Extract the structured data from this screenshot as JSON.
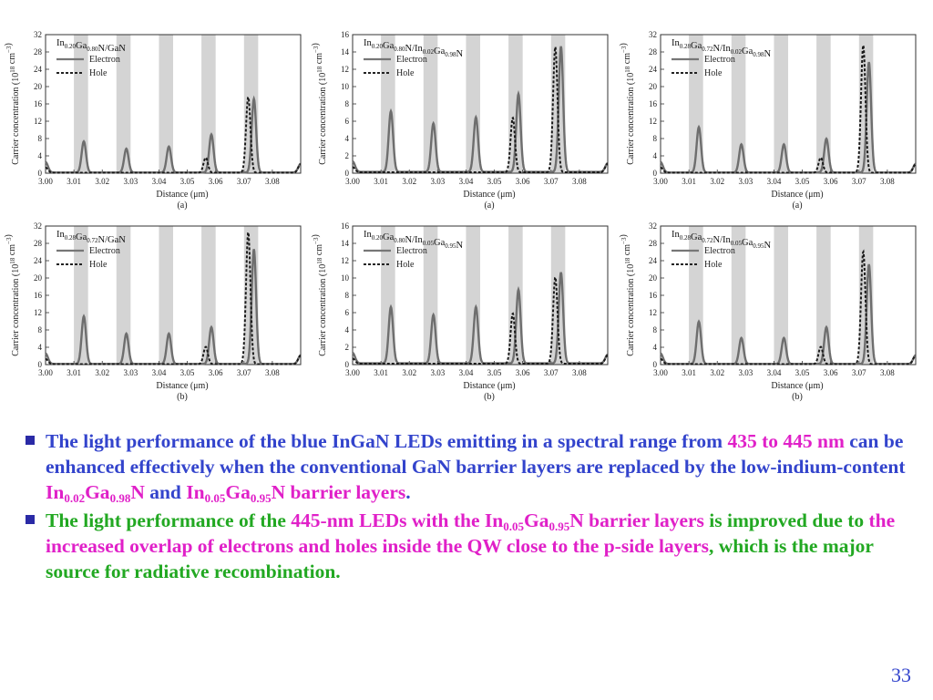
{
  "figure": {
    "y_label": "Carrier concentration (10",
    "y_label_exp": "18",
    "y_label_unit": " cm",
    "y_label_unit_exp": "−3",
    "y_label_close": ")",
    "x_label": "Distance (μm)",
    "legend": {
      "electron": "Electron",
      "hole": "Hole"
    }
  },
  "chart_data": [
    {
      "type": "line",
      "title_parts": [
        {
          "t": "In",
          "s": ""
        },
        {
          "t": "",
          "s": "0.20"
        },
        {
          "t": "Ga",
          "s": ""
        },
        {
          "t": "",
          "s": "0.80"
        },
        {
          "t": "N/GaN",
          "s": ""
        }
      ],
      "panel_label": "(a)",
      "xlim": [
        3.0,
        3.09
      ],
      "x_ticks": [
        "3.00",
        "3.01",
        "3.02",
        "3.03",
        "3.04",
        "3.05",
        "3.06",
        "3.07",
        "3.08"
      ],
      "ylim": [
        0,
        32
      ],
      "y_ticks": [
        "0",
        "4",
        "8",
        "12",
        "16",
        "20",
        "24",
        "28",
        "32"
      ],
      "wells": [
        3.0125,
        3.0275,
        3.0425,
        3.0575,
        3.0725
      ],
      "series": [
        {
          "name": "Electron",
          "peaks": [
            [
              3.0135,
              7.2
            ],
            [
              3.0285,
              5.5
            ],
            [
              3.0435,
              6.0
            ],
            [
              3.0585,
              8.8
            ],
            [
              3.0735,
              17.0
            ]
          ]
        },
        {
          "name": "Hole",
          "peaks": [
            [
              3.0565,
              3.5
            ],
            [
              3.0715,
              17.5
            ]
          ]
        }
      ]
    },
    {
      "type": "line",
      "title_parts": [
        {
          "t": "In",
          "s": ""
        },
        {
          "t": "",
          "s": "0.20"
        },
        {
          "t": "Ga",
          "s": ""
        },
        {
          "t": "",
          "s": "0.80"
        },
        {
          "t": "N/In",
          "s": ""
        },
        {
          "t": "",
          "s": "0.02"
        },
        {
          "t": "Ga",
          "s": ""
        },
        {
          "t": "",
          "s": "0.98"
        },
        {
          "t": "N",
          "s": ""
        }
      ],
      "panel_label": "(a)",
      "xlim": [
        3.0,
        3.09
      ],
      "x_ticks": [
        "3.00",
        "3.01",
        "3.02",
        "3.03",
        "3.04",
        "3.05",
        "3.06",
        "3.07",
        "3.08"
      ],
      "ylim": [
        0,
        16
      ],
      "y_ticks": [
        "0",
        "2",
        "4",
        "6",
        "8",
        "10",
        "12",
        "14",
        "16"
      ],
      "wells": [
        3.0125,
        3.0275,
        3.0425,
        3.0575,
        3.0725
      ],
      "series": [
        {
          "name": "Electron",
          "peaks": [
            [
              3.0135,
              7.0
            ],
            [
              3.0285,
              5.6
            ],
            [
              3.0435,
              6.3
            ],
            [
              3.0585,
              9.0
            ],
            [
              3.0735,
              14.5
            ]
          ]
        },
        {
          "name": "Hole",
          "peaks": [
            [
              3.0565,
              6.3
            ],
            [
              3.0715,
              14.5
            ]
          ]
        }
      ]
    },
    {
      "type": "line",
      "title_parts": [
        {
          "t": "In",
          "s": ""
        },
        {
          "t": "",
          "s": "0.28"
        },
        {
          "t": "Ga",
          "s": ""
        },
        {
          "t": "",
          "s": "0.72"
        },
        {
          "t": "N/In",
          "s": ""
        },
        {
          "t": "",
          "s": "0.02"
        },
        {
          "t": "Ga",
          "s": ""
        },
        {
          "t": "",
          "s": "0.98"
        },
        {
          "t": "N",
          "s": ""
        }
      ],
      "panel_label": "(a)",
      "xlim": [
        3.0,
        3.09
      ],
      "x_ticks": [
        "3.00",
        "3.01",
        "3.02",
        "3.03",
        "3.04",
        "3.05",
        "3.06",
        "3.07",
        "3.08"
      ],
      "ylim": [
        0,
        32
      ],
      "y_ticks": [
        "0",
        "4",
        "8",
        "12",
        "16",
        "20",
        "24",
        "28",
        "32"
      ],
      "wells": [
        3.0125,
        3.0275,
        3.0425,
        3.0575,
        3.0725
      ],
      "series": [
        {
          "name": "Electron",
          "peaks": [
            [
              3.0135,
              10.5
            ],
            [
              3.0285,
              6.5
            ],
            [
              3.0435,
              6.5
            ],
            [
              3.0585,
              7.8
            ],
            [
              3.0735,
              25.5
            ]
          ]
        },
        {
          "name": "Hole",
          "peaks": [
            [
              3.0565,
              3.5
            ],
            [
              3.0715,
              29.5
            ]
          ]
        }
      ]
    },
    {
      "type": "line",
      "title_parts": [
        {
          "t": "In",
          "s": ""
        },
        {
          "t": "",
          "s": "0.28"
        },
        {
          "t": "Ga",
          "s": ""
        },
        {
          "t": "",
          "s": "0.72"
        },
        {
          "t": "N/GaN",
          "s": ""
        }
      ],
      "panel_label": "(b)",
      "xlim": [
        3.0,
        3.09
      ],
      "x_ticks": [
        "3.00",
        "3.01",
        "3.02",
        "3.03",
        "3.04",
        "3.05",
        "3.06",
        "3.07",
        "3.08"
      ],
      "ylim": [
        0,
        32
      ],
      "y_ticks": [
        "0",
        "4",
        "8",
        "12",
        "16",
        "20",
        "24",
        "28",
        "32"
      ],
      "wells": [
        3.0125,
        3.0275,
        3.0425,
        3.0575,
        3.0725
      ],
      "series": [
        {
          "name": "Electron",
          "peaks": [
            [
              3.0135,
              11.0
            ],
            [
              3.0285,
              7.0
            ],
            [
              3.0435,
              7.0
            ],
            [
              3.0585,
              8.5
            ],
            [
              3.0735,
              26.5
            ]
          ]
        },
        {
          "name": "Hole",
          "peaks": [
            [
              3.0565,
              4.0
            ],
            [
              3.0715,
              30.5
            ]
          ]
        }
      ]
    },
    {
      "type": "line",
      "title_parts": [
        {
          "t": "In",
          "s": ""
        },
        {
          "t": "",
          "s": "0.20"
        },
        {
          "t": "Ga",
          "s": ""
        },
        {
          "t": "",
          "s": "0.80"
        },
        {
          "t": "N/In",
          "s": ""
        },
        {
          "t": "",
          "s": "0.05"
        },
        {
          "t": "Ga",
          "s": ""
        },
        {
          "t": "",
          "s": "0.95"
        },
        {
          "t": "N",
          "s": ""
        }
      ],
      "panel_label": "(b)",
      "xlim": [
        3.0,
        3.09
      ],
      "x_ticks": [
        "3.00",
        "3.01",
        "3.02",
        "3.03",
        "3.04",
        "3.05",
        "3.06",
        "3.07",
        "3.08"
      ],
      "ylim": [
        0,
        16
      ],
      "y_ticks": [
        "0",
        "2",
        "4",
        "6",
        "8",
        "10",
        "12",
        "14",
        "16"
      ],
      "wells": [
        3.0125,
        3.0275,
        3.0425,
        3.0575,
        3.0725
      ],
      "series": [
        {
          "name": "Electron",
          "peaks": [
            [
              3.0135,
              6.5
            ],
            [
              3.0285,
              5.6
            ],
            [
              3.0435,
              6.5
            ],
            [
              3.0585,
              8.5
            ],
            [
              3.0735,
              10.5
            ]
          ]
        },
        {
          "name": "Hole",
          "peaks": [
            [
              3.0565,
              5.8
            ],
            [
              3.0715,
              10.0
            ]
          ]
        }
      ]
    },
    {
      "type": "line",
      "title_parts": [
        {
          "t": "In",
          "s": ""
        },
        {
          "t": "",
          "s": "0.28"
        },
        {
          "t": "Ga",
          "s": ""
        },
        {
          "t": "",
          "s": "0.72"
        },
        {
          "t": "N/In",
          "s": ""
        },
        {
          "t": "",
          "s": "0.05"
        },
        {
          "t": "Ga",
          "s": ""
        },
        {
          "t": "",
          "s": "0.95"
        },
        {
          "t": "N",
          "s": ""
        }
      ],
      "panel_label": "(b)",
      "xlim": [
        3.0,
        3.09
      ],
      "x_ticks": [
        "3.00",
        "3.01",
        "3.02",
        "3.03",
        "3.04",
        "3.05",
        "3.06",
        "3.07",
        "3.08"
      ],
      "ylim": [
        0,
        32
      ],
      "y_ticks": [
        "0",
        "4",
        "8",
        "12",
        "16",
        "20",
        "24",
        "28",
        "32"
      ],
      "wells": [
        3.0125,
        3.0275,
        3.0425,
        3.0575,
        3.0725
      ],
      "series": [
        {
          "name": "Electron",
          "peaks": [
            [
              3.0135,
              9.8
            ],
            [
              3.0285,
              6.0
            ],
            [
              3.0435,
              6.0
            ],
            [
              3.0585,
              8.5
            ],
            [
              3.0735,
              23.0
            ]
          ]
        },
        {
          "name": "Hole",
          "peaks": [
            [
              3.0565,
              4.0
            ],
            [
              3.0715,
              26.0
            ]
          ]
        }
      ]
    }
  ],
  "bullets": [
    [
      {
        "t": "The light performance of the blue InGaN LEDs emitting in a spectral range from ",
        "c": "blue"
      },
      {
        "t": "435 to 445 nm",
        "c": "mag"
      },
      {
        "t": " can be enhanced effectively when the conventional GaN barrier layers are replaced by the low-indium-content ",
        "c": "blue"
      },
      {
        "t": "In",
        "c": "mag"
      },
      {
        "t": "0.02",
        "c": "mag",
        "sub": true
      },
      {
        "t": "Ga",
        "c": "mag"
      },
      {
        "t": "0.98",
        "c": "mag",
        "sub": true
      },
      {
        "t": "N",
        "c": "mag"
      },
      {
        "t": " and ",
        "c": "blue"
      },
      {
        "t": "In",
        "c": "mag"
      },
      {
        "t": "0.05",
        "c": "mag",
        "sub": true
      },
      {
        "t": "Ga",
        "c": "mag"
      },
      {
        "t": "0.95",
        "c": "mag",
        "sub": true
      },
      {
        "t": "N barrier layers",
        "c": "mag"
      },
      {
        "t": ".",
        "c": "blue"
      }
    ],
    [
      {
        "t": "The light performance of the ",
        "c": "grn"
      },
      {
        "t": "445-nm LEDs with the In",
        "c": "mag"
      },
      {
        "t": "0.05",
        "c": "mag",
        "sub": true
      },
      {
        "t": "Ga",
        "c": "mag"
      },
      {
        "t": "0.95",
        "c": "mag",
        "sub": true
      },
      {
        "t": "N barrier layers",
        "c": "mag"
      },
      {
        "t": " is improved due to ",
        "c": "grn"
      },
      {
        "t": "the increased overlap of electrons and holes inside the QW close to the p-side layers",
        "c": "mag"
      },
      {
        "t": ", which is the major source for radiative recombination.",
        "c": "grn"
      }
    ]
  ],
  "page_number": "33"
}
